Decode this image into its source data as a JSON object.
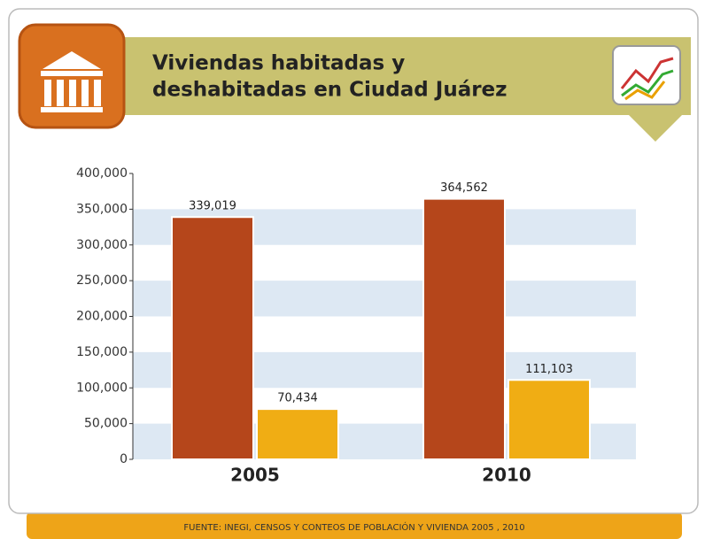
{
  "chart_data": {
    "type": "bar",
    "title": "Viviendas habitadas y",
    "title_line2": "deshabitadas en Ciudad Juárez",
    "source": "FUENTE: INEGI, CENSOS Y CONTEOS DE POBLACIÓN Y VIVIENDA 2005 , 2010",
    "categories": [
      "2005",
      "2010"
    ],
    "series": [
      {
        "color": "#b5461b",
        "values": [
          339019,
          364562
        ],
        "value_labels": [
          "339,019",
          "364,562"
        ]
      },
      {
        "color": "#f0ad14",
        "values": [
          70434,
          111103
        ],
        "value_labels": [
          "70,434",
          "111,103"
        ]
      }
    ],
    "ylim": [
      0,
      400000
    ],
    "yticks": [
      0,
      {
        "value": 50000,
        "label": "50,000"
      },
      {
        "value": 100000,
        "label": "100,000"
      },
      {
        "value": 150000,
        "label": "150,000"
      },
      {
        "value": 200000,
        "label": "200,000"
      },
      {
        "value": 250000,
        "label": "250,000"
      },
      {
        "value": 300000,
        "label": "300,000"
      },
      {
        "value": 350000,
        "label": "350,000"
      },
      {
        "value": 400000,
        "label": "400,000"
      }
    ],
    "grid_bands": true,
    "grid_band_color": "#dde8f3"
  }
}
